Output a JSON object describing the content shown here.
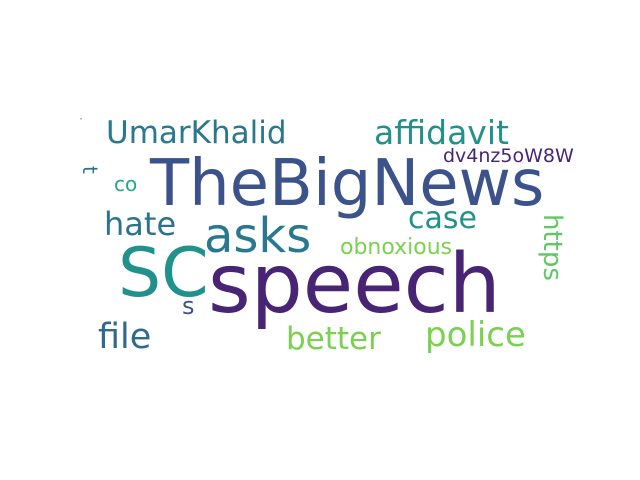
{
  "wordcloud": {
    "words": [
      {
        "key": "thebignews",
        "text": "TheBigNews",
        "color": "#3b528b"
      },
      {
        "key": "speech",
        "text": "speech",
        "color": "#482475"
      },
      {
        "key": "sc",
        "text": "SC",
        "color": "#21918c"
      },
      {
        "key": "asks",
        "text": "asks",
        "color": "#2a788e"
      },
      {
        "key": "umarkhalid",
        "text": "UmarKhalid",
        "color": "#2a788e"
      },
      {
        "key": "affidavit",
        "text": "affidavit",
        "color": "#21918c"
      },
      {
        "key": "dv4nz5ow8w",
        "text": "dv4nz5oW8W",
        "color": "#482475"
      },
      {
        "key": "case",
        "text": "case",
        "color": "#21918c"
      },
      {
        "key": "hate",
        "text": "hate",
        "color": "#2c728e"
      },
      {
        "key": "co",
        "text": "co",
        "color": "#22a884"
      },
      {
        "key": "t",
        "text": "t",
        "color": "#2c728e"
      },
      {
        "key": "obnoxious",
        "text": "obnoxious",
        "color": "#7ad151"
      },
      {
        "key": "https",
        "text": "https",
        "color": "#5ec962"
      },
      {
        "key": "s",
        "text": "s",
        "color": "#3b528b"
      },
      {
        "key": "file",
        "text": "file",
        "color": "#31688e"
      },
      {
        "key": "better",
        "text": "better",
        "color": "#7ad151"
      },
      {
        "key": "police",
        "text": "police",
        "color": "#7ad151"
      }
    ],
    "tiny_mark": "\""
  }
}
